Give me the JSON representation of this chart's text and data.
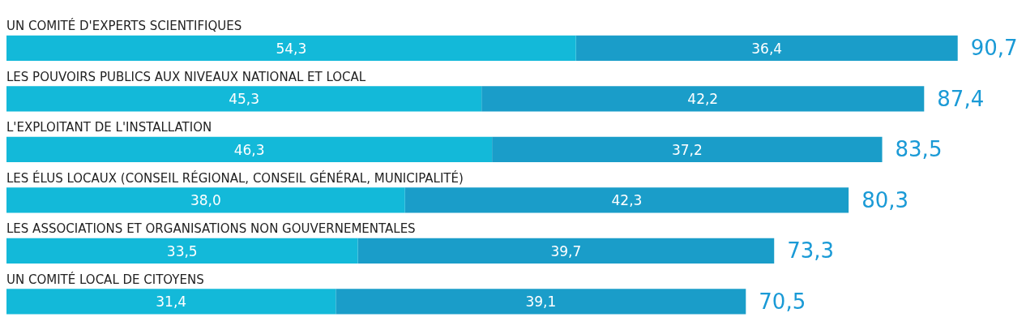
{
  "chart_data": {
    "type": "bar",
    "orientation": "horizontal",
    "stacked": true,
    "categories": [
      "UN COMITÉ D'EXPERTS SCIENTIFIQUES",
      "LES POUVOIRS PUBLICS AUX NIVEAUX NATIONAL ET LOCAL",
      "L'EXPLOITANT DE L'INSTALLATION",
      "LES ÉLUS LOCAUX (CONSEIL RÉGIONAL, CONSEIL GÉNÉRAL, MUNICIPALITÉ)",
      "LES ASSOCIATIONS ET ORGANISATIONS NON GOUVERNEMENTALES",
      "UN COMITÉ LOCAL DE CITOYENS"
    ],
    "series": [
      {
        "color": "#13b9d9",
        "values": [
          54.3,
          45.3,
          46.3,
          38.0,
          33.5,
          31.4
        ],
        "value_labels": [
          "54,3",
          "45,3",
          "46,3",
          "38,0",
          "33,5",
          "31,4"
        ]
      },
      {
        "color": "#1a9dc9",
        "values": [
          36.4,
          42.2,
          37.2,
          42.3,
          39.7,
          39.1
        ],
        "value_labels": [
          "36,4",
          "42,2",
          "37,2",
          "42,3",
          "39,7",
          "39,1"
        ]
      }
    ],
    "totals": [
      "90,7",
      "87,4",
      "83,5",
      "80,3",
      "73,3",
      "70,5"
    ]
  }
}
